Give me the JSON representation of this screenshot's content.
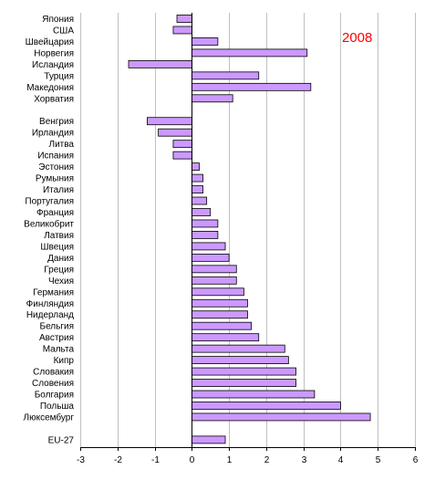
{
  "chart_data": {
    "type": "bar",
    "orientation": "horizontal",
    "annotation": "2008",
    "annotation_color": "#ff0000",
    "bar_color": "#cc99ff",
    "grid": true,
    "xlim": [
      -3,
      6
    ],
    "xticks": [
      "-3",
      "-2",
      "-1",
      "0",
      "1",
      "2",
      "3",
      "4",
      "5",
      "6"
    ],
    "categories": [
      "Япония",
      "США",
      "Швейцария",
      "Норвегия",
      "Исландия",
      "Турция",
      "Македония",
      "Хорватия",
      "",
      "Венгрия",
      "Ирландия",
      "Литва",
      "Испания",
      "Эстония",
      "Румыния",
      "Италия",
      "Португалия",
      "Франция",
      "Великобрит",
      "Латвия",
      "Швеция",
      "Дания",
      "Греция",
      "Чехия",
      "Германия",
      "Финляндия",
      "Нидерланд",
      "Бельгия",
      "Австрия",
      "Мальта",
      "Кипр",
      "Словакия",
      "Словения",
      "Болгария",
      "Польша",
      "Люксембург",
      "",
      "EU-27"
    ],
    "values": [
      -0.4,
      -0.5,
      0.7,
      3.1,
      -1.7,
      1.8,
      3.2,
      1.1,
      null,
      -1.2,
      -0.9,
      -0.5,
      -0.5,
      0.2,
      0.3,
      0.3,
      0.4,
      0.5,
      0.7,
      0.7,
      0.9,
      1.0,
      1.2,
      1.2,
      1.4,
      1.5,
      1.5,
      1.6,
      1.8,
      2.5,
      2.6,
      2.8,
      2.8,
      3.3,
      4.0,
      4.8,
      null,
      0.9
    ]
  }
}
